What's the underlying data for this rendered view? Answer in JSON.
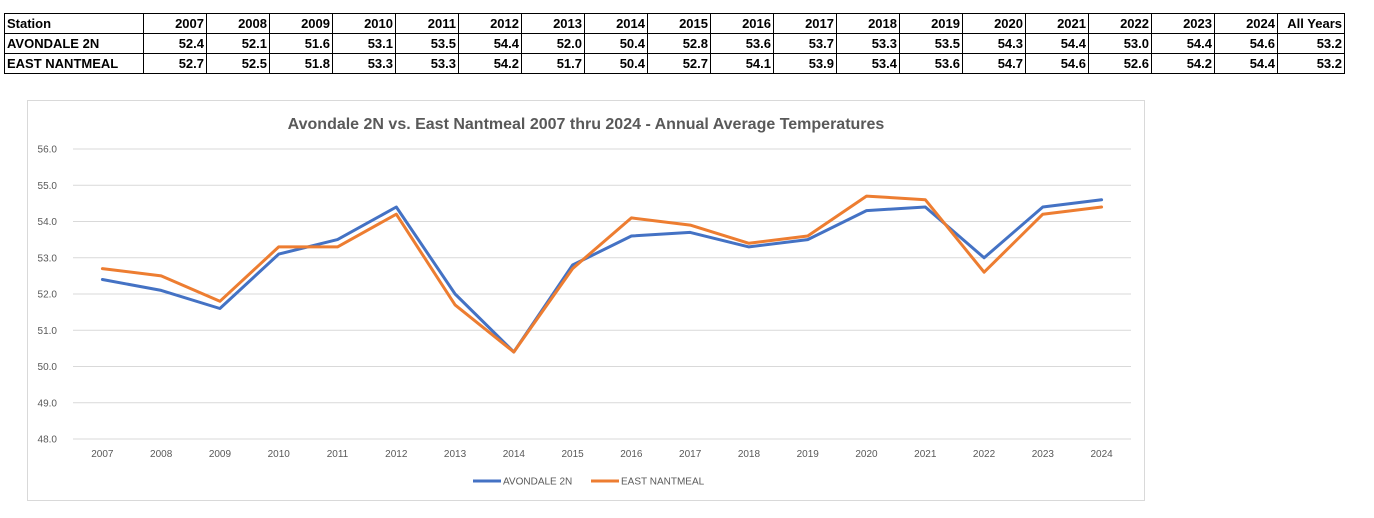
{
  "table": {
    "columns": [
      "Station",
      "2007",
      "2008",
      "2009",
      "2010",
      "2011",
      "2012",
      "2013",
      "2014",
      "2015",
      "2016",
      "2017",
      "2018",
      "2019",
      "2020",
      "2021",
      "2022",
      "2023",
      "2024",
      "All Years"
    ],
    "rows": [
      [
        "AVONDALE 2N",
        "52.4",
        "52.1",
        "51.6",
        "53.1",
        "53.5",
        "54.4",
        "52.0",
        "50.4",
        "52.8",
        "53.6",
        "53.7",
        "53.3",
        "53.5",
        "54.3",
        "54.4",
        "53.0",
        "54.4",
        "54.6",
        "53.2"
      ],
      [
        "EAST NANTMEAL",
        "52.7",
        "52.5",
        "51.8",
        "53.3",
        "53.3",
        "54.2",
        "51.7",
        "50.4",
        "52.7",
        "54.1",
        "53.9",
        "53.4",
        "53.6",
        "54.7",
        "54.6",
        "52.6",
        "54.2",
        "54.4",
        "53.2"
      ]
    ]
  },
  "chart_data": {
    "type": "line",
    "title": "Avondale 2N vs. East Nantmeal 2007 thru 2024 - Annual Average Temperatures",
    "xlabel": "",
    "ylabel": "",
    "categories": [
      "2007",
      "2008",
      "2009",
      "2010",
      "2011",
      "2012",
      "2013",
      "2014",
      "2015",
      "2016",
      "2017",
      "2018",
      "2019",
      "2020",
      "2021",
      "2022",
      "2023",
      "2024"
    ],
    "ylim": [
      48.0,
      56.0
    ],
    "yticks": [
      "48.0",
      "49.0",
      "50.0",
      "51.0",
      "52.0",
      "53.0",
      "54.0",
      "55.0",
      "56.0"
    ],
    "grid": true,
    "legend_position": "bottom",
    "series": [
      {
        "name": "AVONDALE 2N",
        "color": "#4472c4",
        "values": [
          52.4,
          52.1,
          51.6,
          53.1,
          53.5,
          54.4,
          52.0,
          50.4,
          52.8,
          53.6,
          53.7,
          53.3,
          53.5,
          54.3,
          54.4,
          53.0,
          54.4,
          54.6
        ]
      },
      {
        "name": "EAST NANTMEAL",
        "color": "#ed7d31",
        "values": [
          52.7,
          52.5,
          51.8,
          53.3,
          53.3,
          54.2,
          51.7,
          50.4,
          52.7,
          54.1,
          53.9,
          53.4,
          53.6,
          54.7,
          54.6,
          52.6,
          54.2,
          54.4
        ]
      }
    ]
  }
}
